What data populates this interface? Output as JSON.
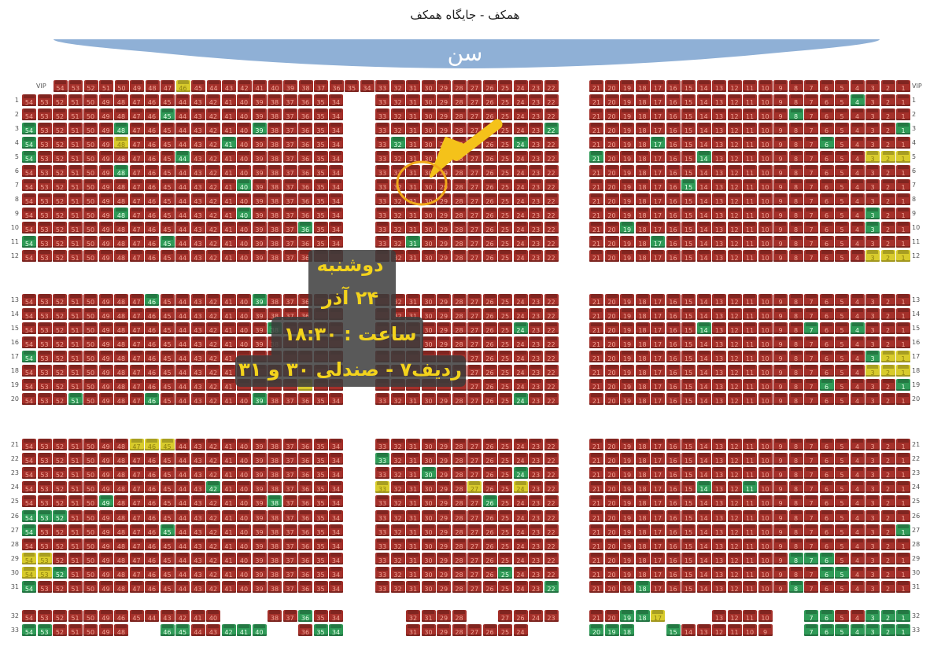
{
  "header": {
    "title": "همکف - جایگاه همکف"
  },
  "stage": {
    "label": "سن",
    "color": "#8fb0d6"
  },
  "colors": {
    "red": "#a4302a",
    "green": "#2f9a57",
    "yellow": "#d8cb2c"
  },
  "default_blocks": {
    "left": "54-34",
    "middle": "33-22",
    "right": "21-1"
  },
  "rows": [
    {
      "label": "VIP",
      "green": [],
      "yellow": [
        46
      ]
    },
    {
      "label": "1",
      "green": [
        4
      ],
      "yellow": []
    },
    {
      "label": "2",
      "green": [
        45,
        8
      ],
      "yellow": []
    },
    {
      "label": "3",
      "green": [
        54,
        48,
        39,
        22,
        1
      ],
      "yellow": []
    },
    {
      "label": "4",
      "green": [
        54,
        41,
        32,
        24,
        17,
        6
      ],
      "yellow": [
        48
      ]
    },
    {
      "label": "5",
      "green": [
        54,
        44,
        21,
        14
      ],
      "yellow": [
        3,
        2,
        1
      ]
    },
    {
      "label": "6",
      "green": [
        48
      ],
      "yellow": []
    },
    {
      "label": "7",
      "green": [
        40,
        15
      ],
      "yellow": []
    },
    {
      "label": "8",
      "green": [],
      "yellow": []
    },
    {
      "label": "9",
      "green": [
        48,
        40,
        3
      ],
      "yellow": []
    },
    {
      "label": "10",
      "green": [
        36,
        19,
        3
      ],
      "yellow": []
    },
    {
      "label": "11",
      "green": [
        54,
        45,
        31,
        17
      ],
      "yellow": []
    },
    {
      "label": "12",
      "green": [],
      "yellow": [
        3,
        2,
        1
      ]
    },
    {
      "label": "13",
      "green": [
        46,
        39
      ],
      "yellow": []
    },
    {
      "label": "14",
      "green": [],
      "yellow": []
    },
    {
      "label": "15",
      "green": [
        38,
        24,
        14,
        7,
        4
      ],
      "yellow": []
    },
    {
      "label": "16",
      "green": [],
      "yellow": []
    },
    {
      "label": "17",
      "green": [
        54,
        3
      ],
      "yellow": [
        2,
        1
      ]
    },
    {
      "label": "18",
      "green": [],
      "yellow": [
        3,
        2,
        1
      ]
    },
    {
      "label": "19",
      "green": [
        6,
        1
      ],
      "yellow": [
        36
      ]
    },
    {
      "label": "20",
      "green": [
        51,
        46,
        39,
        24
      ],
      "yellow": []
    },
    {
      "label": "21",
      "green": [],
      "yellow": [
        47,
        46,
        45
      ]
    },
    {
      "label": "22",
      "green": [
        33
      ],
      "yellow": []
    },
    {
      "label": "23",
      "green": [
        30,
        24
      ],
      "yellow": []
    },
    {
      "label": "24",
      "green": [
        42,
        14,
        11
      ],
      "yellow": [
        33,
        27,
        24
      ]
    },
    {
      "label": "25",
      "green": [
        49,
        38,
        26
      ],
      "yellow": []
    },
    {
      "label": "26",
      "green": [
        54,
        53,
        52
      ],
      "yellow": []
    },
    {
      "label": "27",
      "green": [
        54,
        45,
        1
      ],
      "yellow": []
    },
    {
      "label": "28",
      "green": [],
      "yellow": []
    },
    {
      "label": "29",
      "green": [
        8,
        7,
        6
      ],
      "yellow": [
        54,
        53
      ]
    },
    {
      "label": "30",
      "green": [
        52,
        25,
        6,
        5
      ],
      "yellow": [
        54,
        53
      ]
    },
    {
      "label": "31",
      "green": [
        54,
        22,
        18,
        8
      ],
      "yellow": []
    },
    {
      "label": "32",
      "left": "54-49,46-40,_,_,_,38-34",
      "middle": "_,_,32,31,29,28,_,_,27,26,24,23",
      "right": "21-17,_,_,_,13-10,_,_,7-1",
      "green": [
        36,
        19,
        18,
        7,
        6,
        3,
        2,
        1
      ],
      "yellow": [
        17
      ]
    },
    {
      "label": "33",
      "left": "54-48,_,_,46-40,_,_,36-34",
      "middle": "_,_,31-24,_,_",
      "right": "20-18,_,_,15-9,_,_,7-1",
      "green": [
        54,
        53,
        46,
        45,
        42,
        41,
        40,
        35,
        34,
        20,
        19,
        18,
        15,
        7,
        6,
        5,
        4,
        3,
        2,
        1
      ],
      "yellow": []
    }
  ],
  "overlay": {
    "line1": "دوشنبه",
    "line2": "۲۴ آذر",
    "line3": "ساعت : ۱۸:۳۰",
    "line4": "ردیف۷ - صندلی ۳۰ و ۳۱"
  }
}
